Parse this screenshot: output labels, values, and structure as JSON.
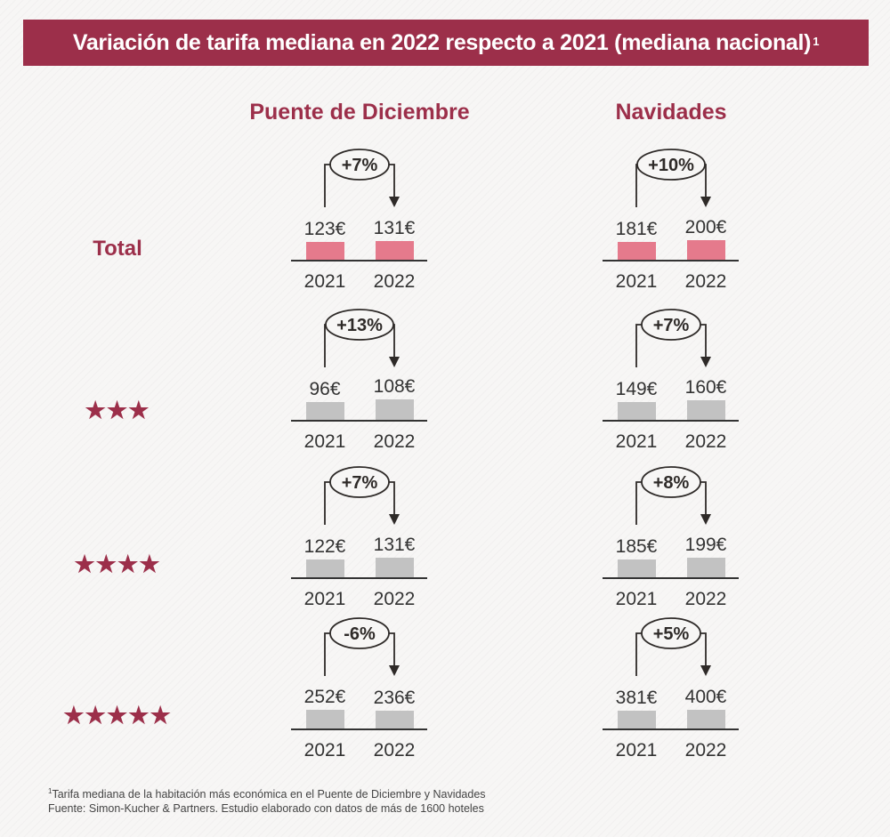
{
  "title": "Variación de tarifa mediana en 2022 respecto a 2021 (mediana nacional)",
  "title_footnote_mark": "1",
  "columns": [
    "Puente de Diciembre",
    "Navidades"
  ],
  "rows": [
    {
      "label": "Total",
      "stars": ""
    },
    {
      "label": "",
      "stars": "★★★"
    },
    {
      "label": "",
      "stars": "★★★★"
    },
    {
      "label": "",
      "stars": "★★★★★"
    }
  ],
  "chart_data": {
    "type": "bar",
    "categories": [
      "2021",
      "2022"
    ],
    "panels": [
      {
        "row": "Total",
        "column": "Puente de Diciembre",
        "values": [
          123,
          131
        ],
        "value_labels": [
          "123€",
          "131€"
        ],
        "change": "+7%",
        "highlight": true
      },
      {
        "row": "Total",
        "column": "Navidades",
        "values": [
          181,
          200
        ],
        "value_labels": [
          "181€",
          "200€"
        ],
        "change": "+10%",
        "highlight": true
      },
      {
        "row": "3 estrellas",
        "column": "Puente de Diciembre",
        "values": [
          96,
          108
        ],
        "value_labels": [
          "96€",
          "108€"
        ],
        "change": "+13%",
        "highlight": false
      },
      {
        "row": "3 estrellas",
        "column": "Navidades",
        "values": [
          149,
          160
        ],
        "value_labels": [
          "149€",
          "160€"
        ],
        "change": "+7%",
        "highlight": false
      },
      {
        "row": "4 estrellas",
        "column": "Puente de Diciembre",
        "values": [
          122,
          131
        ],
        "value_labels": [
          "122€",
          "131€"
        ],
        "change": "+7%",
        "highlight": false
      },
      {
        "row": "4 estrellas",
        "column": "Navidades",
        "values": [
          185,
          199
        ],
        "value_labels": [
          "185€",
          "199€"
        ],
        "change": "+8%",
        "highlight": false
      },
      {
        "row": "5 estrellas",
        "column": "Puente de Diciembre",
        "values": [
          252,
          236
        ],
        "value_labels": [
          "252€",
          "236€"
        ],
        "change": "-6%",
        "highlight": false
      },
      {
        "row": "5 estrellas",
        "column": "Navidades",
        "values": [
          381,
          400
        ],
        "value_labels": [
          "381€",
          "400€"
        ],
        "change": "+5%",
        "highlight": false
      }
    ]
  },
  "colors": {
    "accent": "#9c2f4a",
    "bar_highlight": "#e57a8c",
    "bar_default": "#c2c2c2",
    "text": "#333333"
  },
  "footnotes": {
    "line1_mark": "1",
    "line1": "Tarifa mediana de la habitación más económica en el Puente de Diciembre y Navidades",
    "line2": "Fuente: Simon-Kucher & Partners. Estudio elaborado con datos de más de 1600 hoteles"
  }
}
